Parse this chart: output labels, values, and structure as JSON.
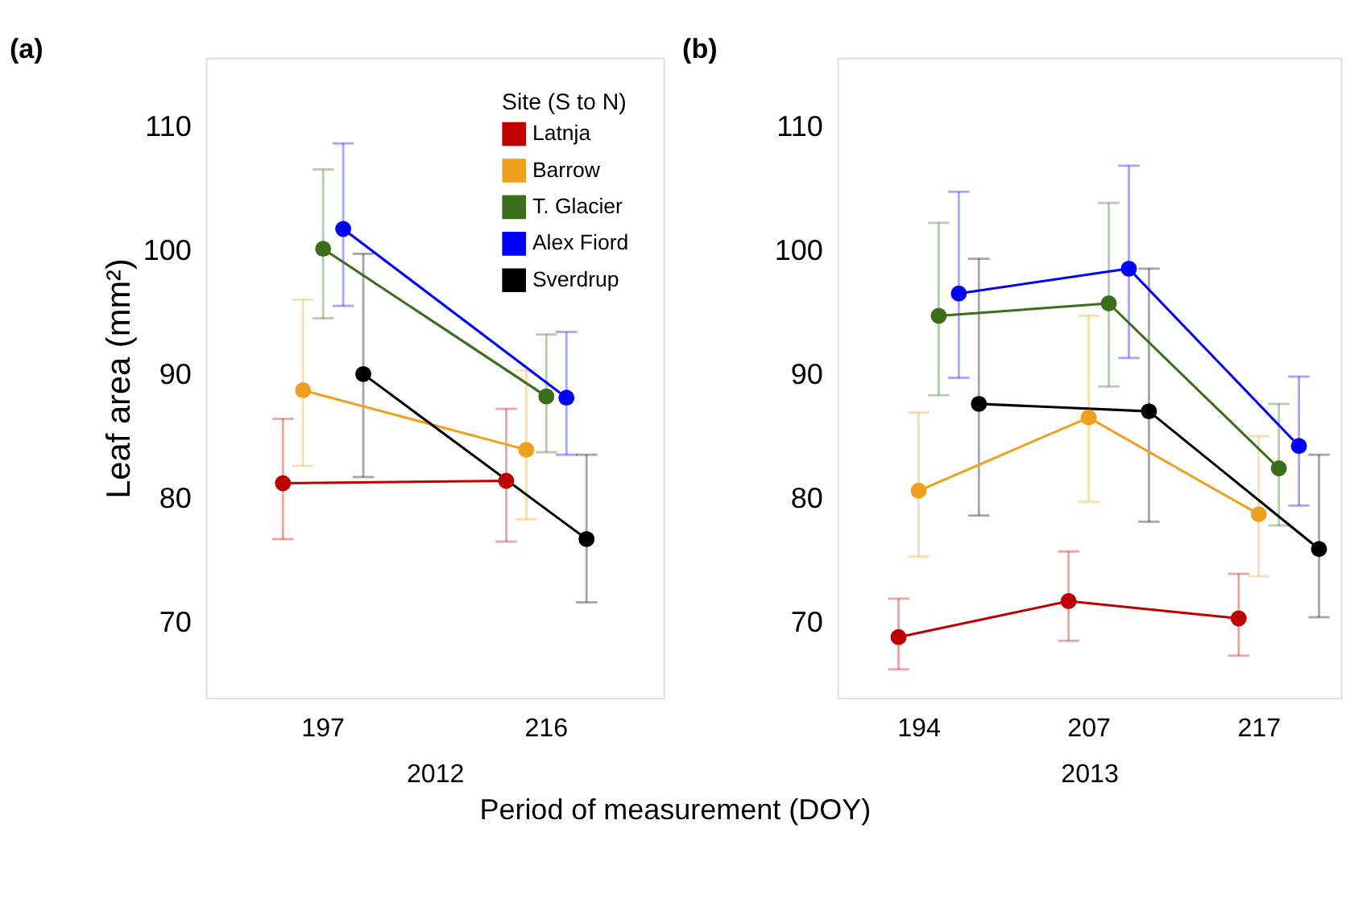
{
  "chart_data": [
    {
      "type": "line",
      "title": "(a)",
      "xlabel": "2012",
      "ylabel": "Leaf area (mm²)",
      "legend_title": "Site (S to N)",
      "legend": "top right",
      "marker": "circle",
      "grid": false,
      "ylim": [
        63.9,
        115.5
      ],
      "yticks": [
        70,
        80,
        90,
        100,
        110
      ],
      "annotations": [
        "Period of measurement (DOY)"
      ],
      "categories": [
        "197",
        "216"
      ],
      "series": [
        {
          "name": "Latnja",
          "color": "#c00000",
          "values": [
            81.2,
            81.4
          ],
          "errors": [
            [
              76.7,
              86.4
            ],
            [
              76.5,
              87.2
            ]
          ]
        },
        {
          "name": "Barrow",
          "color": "#f0a020",
          "values": [
            88.7,
            83.9
          ],
          "errors": [
            [
              82.6,
              96.0
            ],
            [
              78.3,
              90.3
            ]
          ]
        },
        {
          "name": "T. Glacier",
          "color": "#3a6e1a",
          "values": [
            100.1,
            88.2
          ],
          "errors": [
            [
              94.5,
              106.5
            ],
            [
              83.7,
              93.2
            ]
          ]
        },
        {
          "name": "Alex Fiord",
          "color": "#0000ff",
          "values": [
            101.7,
            88.1
          ],
          "errors": [
            [
              95.5,
              108.6
            ],
            [
              83.5,
              93.4
            ]
          ]
        },
        {
          "name": "Sverdrup",
          "color": "#000000",
          "values": [
            90.0,
            76.7
          ],
          "errors": [
            [
              81.7,
              99.7
            ],
            [
              71.6,
              83.5
            ]
          ]
        }
      ]
    },
    {
      "type": "line",
      "title": "(b)",
      "xlabel": "2013",
      "legend": false,
      "marker": "circle",
      "grid": false,
      "ylim": [
        63.9,
        115.5
      ],
      "yticks": [
        70,
        80,
        90,
        100,
        110
      ],
      "categories": [
        "194",
        "207",
        "217"
      ],
      "series": [
        {
          "name": "Latnja",
          "color": "#c00000",
          "values": [
            68.8,
            71.7,
            70.3
          ],
          "errors": [
            [
              66.2,
              71.9
            ],
            [
              68.5,
              75.7
            ],
            [
              67.3,
              73.9
            ]
          ]
        },
        {
          "name": "Barrow",
          "color": "#f0a020",
          "values": [
            80.6,
            86.5,
            78.7
          ],
          "errors": [
            [
              75.3,
              86.9
            ],
            [
              79.7,
              94.7
            ],
            [
              73.7,
              85.0
            ]
          ]
        },
        {
          "name": "T. Glacier",
          "color": "#3a6e1a",
          "values": [
            94.7,
            95.7,
            82.4
          ],
          "errors": [
            [
              88.3,
              102.2
            ],
            [
              89.0,
              103.8
            ],
            [
              77.8,
              87.6
            ]
          ]
        },
        {
          "name": "Alex Fiord",
          "color": "#0000ff",
          "values": [
            96.5,
            98.5,
            84.2
          ],
          "errors": [
            [
              89.7,
              104.7
            ],
            [
              91.3,
              106.8
            ],
            [
              79.4,
              89.8
            ]
          ]
        },
        {
          "name": "Sverdrup",
          "color": "#000000",
          "values": [
            87.6,
            87.0,
            75.9
          ],
          "errors": [
            [
              78.6,
              99.3
            ],
            [
              78.1,
              98.5
            ],
            [
              70.4,
              83.5
            ]
          ]
        }
      ]
    }
  ]
}
